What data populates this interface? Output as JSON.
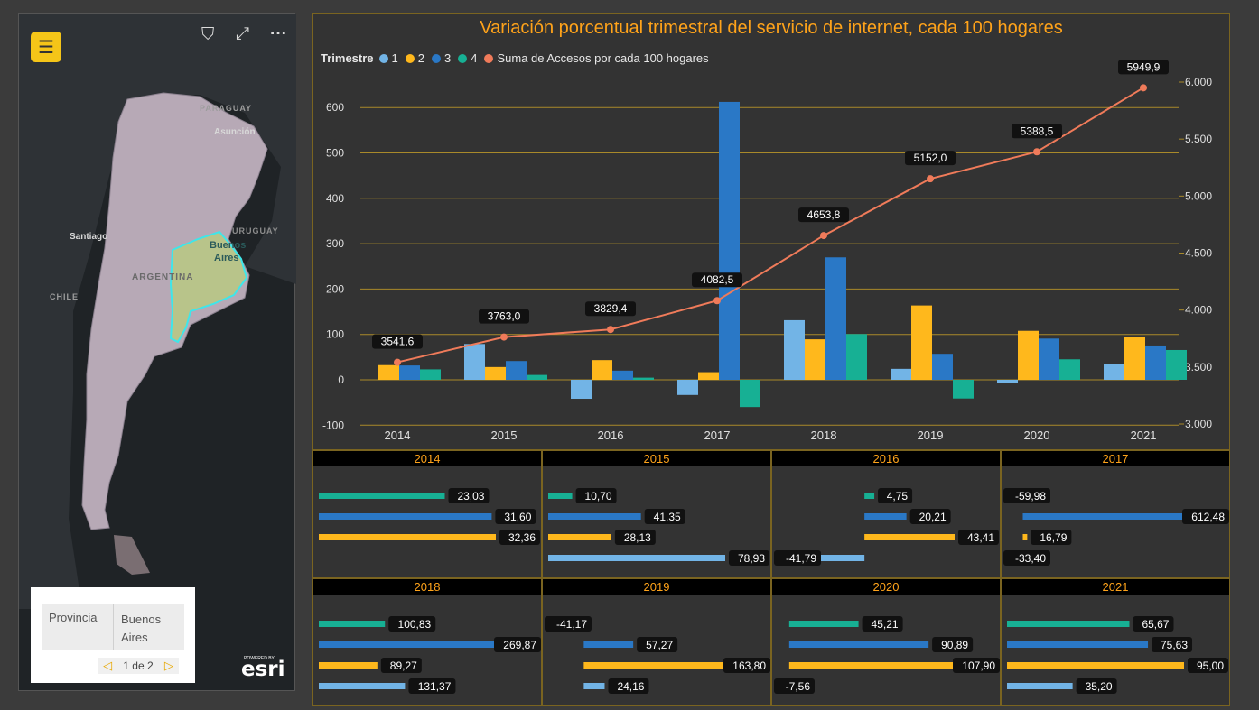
{
  "map": {
    "labels": {
      "paraguay": "PARAGUAY",
      "asuncion": "Asunción",
      "uruguay": "URUGUAY",
      "santiago": "Santiago",
      "buenos_aires_line1": "Buenos",
      "buenos_aires_line2": "Aires",
      "argentina": "ARGENTINA",
      "chile": "CHILE"
    },
    "toolbar": {
      "menu_icon": "hamburger-menu-icon",
      "menu_glyph": "☰",
      "filter_icon": "filter-icon",
      "filter_glyph": "⛉",
      "expand_icon": "expand-icon",
      "expand_glyph": "⤢",
      "more_icon": "more-options-icon",
      "more_glyph": "···"
    },
    "popup": {
      "field": "Provincia",
      "value_line1": "Buenos",
      "value_line2": "Aires",
      "page": "1 de 2",
      "prev_glyph": "◁",
      "next_glyph": "▷"
    },
    "attribution": {
      "powered": "POWERED BY",
      "brand": "esri"
    },
    "colors": {
      "land": "#b7a9b6",
      "highlight": "#b8c48a",
      "highlight_border": "#3ee6ea",
      "water": "#1f2326"
    }
  },
  "chart_data": [
    {
      "type": "bar",
      "title": "Variación porcentual trimestral del servicio de internet, cada 100 hogares",
      "legend_title": "Trimestre",
      "categories": [
        "2014",
        "2015",
        "2016",
        "2017",
        "2018",
        "2019",
        "2020",
        "2021"
      ],
      "series": [
        {
          "name": "1",
          "color": "#72b4e6",
          "values": [
            null,
            78.93,
            -41.79,
            -33.4,
            131.37,
            24.16,
            -7.56,
            35.2
          ]
        },
        {
          "name": "2",
          "color": "#ffb81c",
          "values": [
            32.36,
            28.13,
            43.41,
            16.79,
            89.27,
            163.8,
            107.9,
            95.0
          ]
        },
        {
          "name": "3",
          "color": "#2a78c6",
          "values": [
            31.6,
            41.35,
            20.21,
            612.48,
            269.87,
            57.27,
            90.89,
            75.63
          ]
        },
        {
          "name": "4",
          "color": "#17b094",
          "values": [
            23.03,
            10.7,
            4.75,
            -59.98,
            100.83,
            -41.17,
            45.21,
            65.67
          ]
        }
      ],
      "line_series": {
        "name": "Suma de Accesos por cada 100 hogares",
        "color": "#f07b5a",
        "values": [
          3541.6,
          3763.0,
          3829.4,
          4082.5,
          4653.8,
          5152.0,
          5388.5,
          5949.9
        ],
        "labels": [
          "3541,6",
          "3763,0",
          "3829,4",
          "4082,5",
          "4653,8",
          "5152,0",
          "5388,5",
          "5949,9"
        ]
      },
      "y_left": {
        "ticks": [
          600,
          500,
          400,
          300,
          200,
          100,
          0,
          -100
        ],
        "ylim": [
          -100,
          700
        ]
      },
      "y_right": {
        "ticks": [
          "6.000",
          "5.500",
          "5.000",
          "4.500",
          "4.000",
          "3.500",
          "3.000"
        ],
        "ylim": [
          3000,
          6300
        ]
      },
      "grid": true,
      "legend_position": "top-left"
    },
    {
      "type": "bar",
      "orientation": "horizontal",
      "panels": [
        {
          "title": "2014",
          "rows": [
            {
              "series": "4",
              "value": 23.03,
              "label": "23,03"
            },
            {
              "series": "3",
              "value": 31.6,
              "label": "31,60"
            },
            {
              "series": "2",
              "value": 32.36,
              "label": "32,36"
            }
          ]
        },
        {
          "title": "2015",
          "rows": [
            {
              "series": "4",
              "value": 10.7,
              "label": "10,70"
            },
            {
              "series": "3",
              "value": 41.35,
              "label": "41,35"
            },
            {
              "series": "2",
              "value": 28.13,
              "label": "28,13"
            },
            {
              "series": "1",
              "value": 78.93,
              "label": "78,93"
            }
          ]
        },
        {
          "title": "2016",
          "rows": [
            {
              "series": "4",
              "value": 4.75,
              "label": "4,75"
            },
            {
              "series": "3",
              "value": 20.21,
              "label": "20,21"
            },
            {
              "series": "2",
              "value": 43.41,
              "label": "43,41"
            },
            {
              "series": "1",
              "value": -41.79,
              "label": "-41,79"
            }
          ]
        },
        {
          "title": "2017",
          "rows": [
            {
              "series": "4",
              "value": -59.98,
              "label": "-59,98"
            },
            {
              "series": "3",
              "value": 612.48,
              "label": "612,48"
            },
            {
              "series": "2",
              "value": 16.79,
              "label": "16,79"
            },
            {
              "series": "1",
              "value": -33.4,
              "label": "-33,40"
            }
          ]
        },
        {
          "title": "2018",
          "rows": [
            {
              "series": "4",
              "value": 100.83,
              "label": "100,83"
            },
            {
              "series": "3",
              "value": 269.87,
              "label": "269,87"
            },
            {
              "series": "2",
              "value": 89.27,
              "label": "89,27"
            },
            {
              "series": "1",
              "value": 131.37,
              "label": "131,37"
            }
          ]
        },
        {
          "title": "2019",
          "rows": [
            {
              "series": "4",
              "value": -41.17,
              "label": "-41,17"
            },
            {
              "series": "3",
              "value": 57.27,
              "label": "57,27"
            },
            {
              "series": "2",
              "value": 163.8,
              "label": "163,80"
            },
            {
              "series": "1",
              "value": 24.16,
              "label": "24,16"
            }
          ]
        },
        {
          "title": "2020",
          "rows": [
            {
              "series": "4",
              "value": 45.21,
              "label": "45,21"
            },
            {
              "series": "3",
              "value": 90.89,
              "label": "90,89"
            },
            {
              "series": "2",
              "value": 107.9,
              "label": "107,90"
            },
            {
              "series": "1",
              "value": -7.56,
              "label": "-7,56"
            }
          ]
        },
        {
          "title": "2021",
          "rows": [
            {
              "series": "4",
              "value": 65.67,
              "label": "65,67"
            },
            {
              "series": "3",
              "value": 75.63,
              "label": "75,63"
            },
            {
              "series": "2",
              "value": 95.0,
              "label": "95,00"
            },
            {
              "series": "1",
              "value": 35.2,
              "label": "35,20"
            }
          ]
        }
      ]
    }
  ]
}
